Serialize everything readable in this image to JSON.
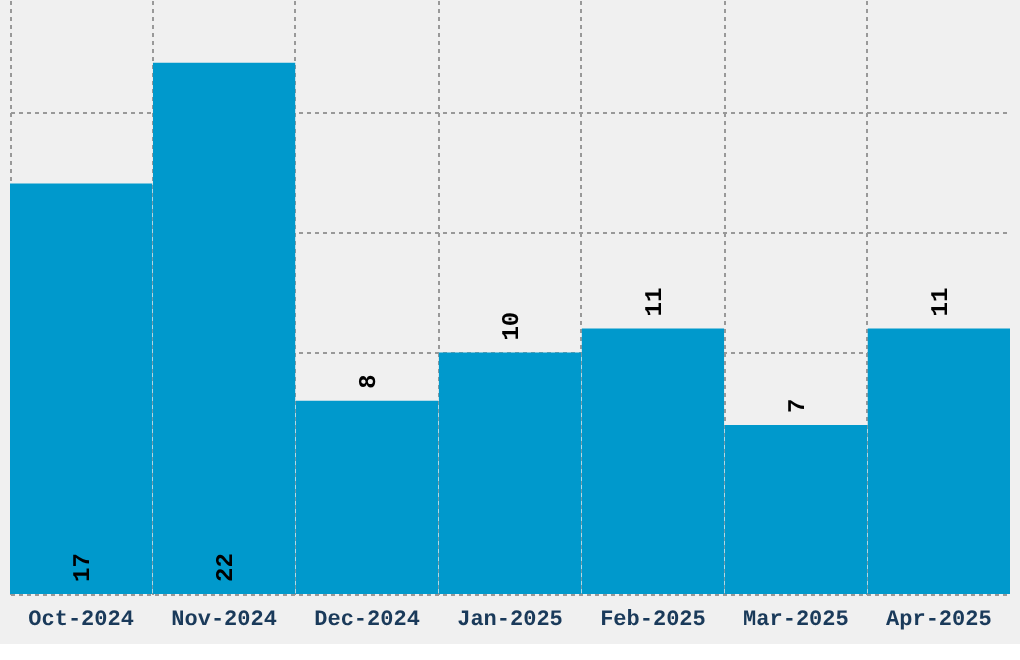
{
  "chart_data": {
    "type": "bar",
    "categories": [
      "Oct-2024",
      "Nov-2024",
      "Dec-2024",
      "Jan-2025",
      "Feb-2025",
      "Mar-2025",
      "Apr-2025"
    ],
    "values": [
      17,
      22,
      8,
      10,
      11,
      7,
      11
    ],
    "color": "#0099cc",
    "ylim": [
      0,
      24.6
    ],
    "tick_labels": "x",
    "grid": true,
    "data_labels": true
  }
}
